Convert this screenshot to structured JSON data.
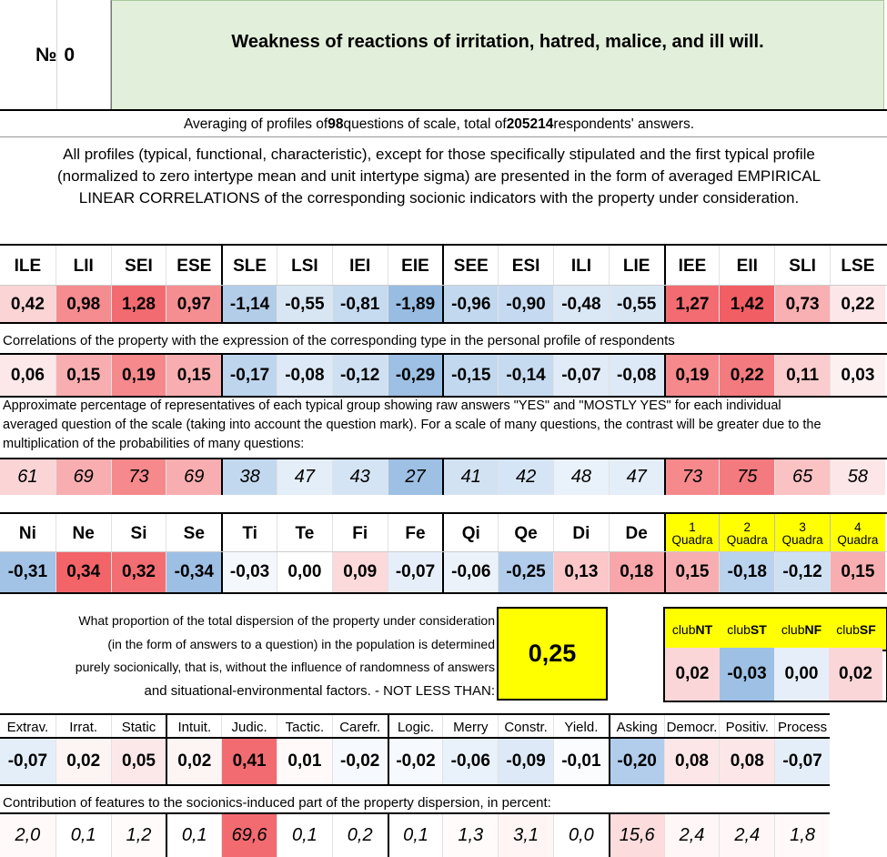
{
  "header": {
    "number_label": "№",
    "number": "0",
    "title": "Weakness of reactions of irritation, hatred, malice, and ill will."
  },
  "summary": {
    "pre": "Averaging of profiles of ",
    "questions": "98",
    "mid": " questions of scale, total of ",
    "answers": "205214",
    "post": " respondents' answers."
  },
  "intro": {
    "line1": "All profiles (typical, functional, characteristic), except for those specifically stipulated and the first typical profile",
    "line2": "(normalized to zero intertype mean and unit intertype sigma) are presented in the form of averaged EMPIRICAL",
    "line3": "LINEAR CORRELATIONS of the corresponding socionic indicators with the property under consideration."
  },
  "types": {
    "headers": [
      "ILE",
      "LII",
      "SEI",
      "ESE",
      "SLE",
      "LSI",
      "IEI",
      "EIE",
      "SEE",
      "ESI",
      "ILI",
      "LIE",
      "IEE",
      "EII",
      "SLI",
      "LSE"
    ],
    "profile": [
      "0,42",
      "0,98",
      "1,28",
      "0,97",
      "-1,14",
      "-0,55",
      "-0,81",
      "-1,89",
      "-0,96",
      "-0,90",
      "-0,48",
      "-0,55",
      "1,27",
      "1,42",
      "0,73",
      "0,22"
    ],
    "profile_colors": [
      "#fbd4d6",
      "#f58c8f",
      "#f26b70",
      "#f58e91",
      "#b3cde9",
      "#d8e6f4",
      "#c6daf0",
      "#98bce2",
      "#c2d8ef",
      "#c5d9f0",
      "#dae7f5",
      "#d8e6f4",
      "#f26c71",
      "#f15f64",
      "#f8b0b2",
      "#fde6e7"
    ],
    "corr_label": "Correlations of the property with the expression of the corresponding type in the personal profile of respondents",
    "correlations": [
      "0,06",
      "0,15",
      "0,19",
      "0,15",
      "-0,17",
      "-0,08",
      "-0,12",
      "-0,29",
      "-0,15",
      "-0,14",
      "-0,07",
      "-0,08",
      "0,19",
      "0,22",
      "0,11",
      "0,03"
    ],
    "corr_colors": [
      "#fde8e9",
      "#f8aeb0",
      "#f5898c",
      "#f8aeb0",
      "#bed5ee",
      "#dde9f6",
      "#cfe0f3",
      "#9dc0e4",
      "#c2d8ef",
      "#c6daf0",
      "#e0ebf7",
      "#dde9f6",
      "#f5898c",
      "#f37a7e",
      "#fbcccd",
      "#fdf0f1"
    ],
    "pct_label": [
      "Approximate percentage of representatives of each typical group showing raw answers \"YES\" and \"MOSTLY YES\" for each individual",
      "averaged question of the scale (taking into account the question mark). For a scale of many questions, the contrast will be greater due to the",
      "multiplication of the probabilities of many questions:"
    ],
    "percentages": [
      "61",
      "69",
      "73",
      "69",
      "38",
      "47",
      "43",
      "27",
      "41",
      "42",
      "48",
      "47",
      "73",
      "75",
      "65",
      "58"
    ],
    "pct_colors": [
      "#fbd4d6",
      "#f8aeb0",
      "#f5898c",
      "#f8aeb0",
      "#c2d8ef",
      "#e4eef8",
      "#d5e4f4",
      "#9dc0e4",
      "#d2e2f3",
      "#d6e5f5",
      "#e9f1fa",
      "#e4eef8",
      "#f5898c",
      "#f37a7e",
      "#fbc2c4",
      "#fde6e7"
    ]
  },
  "functions": {
    "headers": [
      "Ni",
      "Ne",
      "Si",
      "Se",
      "Ti",
      "Te",
      "Fi",
      "Fe",
      "Qi",
      "Qe",
      "Di",
      "De"
    ],
    "values": [
      "-0,31",
      "0,34",
      "0,32",
      "-0,34",
      "-0,03",
      "0,00",
      "0,09",
      "-0,07",
      "-0,06",
      "-0,25",
      "0,13",
      "0,18"
    ],
    "colors": [
      "#a3c3e6",
      "#f26468",
      "#f26e72",
      "#9ebfe4",
      "#f4f8fc",
      "#ffffff",
      "#fcd9da",
      "#e6eff9",
      "#ebf2fa",
      "#b2cdeb",
      "#fbc7c9",
      "#f8a6a9"
    ],
    "quadra_nums": [
      "1",
      "2",
      "3",
      "4"
    ],
    "quadra_word": "Quadra",
    "quadra_values": [
      "0,15",
      "-0,18",
      "-0,12",
      "0,15"
    ],
    "quadra_colors": [
      "#f8aeb0",
      "#b9d2ed",
      "#cfe0f3",
      "#f8aeb0"
    ]
  },
  "dispersion": {
    "lines": [
      "What proportion of the total dispersion of the property under consideration",
      "(in the form of answers to a question) in the population is determined",
      "purely socionically, that is, without the influence of randomness of answers",
      "and situational-environmental factors. - NOT LESS THAN:"
    ],
    "value": "0,25",
    "club_prefix": "club",
    "clubs": [
      "NT",
      "ST",
      "NF",
      "SF"
    ],
    "club_values": [
      "0,02",
      "-0,03",
      "0,00",
      "0,02"
    ],
    "club_colors": [
      "#fbd6d8",
      "#9dc0e4",
      "#e6eff9",
      "#fbd6d8"
    ]
  },
  "traits": {
    "headers": [
      "Extrav.",
      "Irrat.",
      "Static",
      "Intuit.",
      "Judic.",
      "Tactic.",
      "Carefr.",
      "Logic.",
      "Merry",
      "Constr.",
      "Yield.",
      "Asking",
      "Democr.",
      "Positiv.",
      "Process"
    ],
    "values": [
      "-0,07",
      "0,02",
      "0,05",
      "0,02",
      "0,41",
      "0,01",
      "-0,02",
      "-0,02",
      "-0,06",
      "-0,09",
      "-0,01",
      "-0,20",
      "0,08",
      "0,08",
      "-0,07"
    ],
    "colors": [
      "#e4eef8",
      "#fdf4f4",
      "#fde8e9",
      "#fdf4f4",
      "#f26b70",
      "#fff9f9",
      "#f6f9fd",
      "#f6f9fd",
      "#e9f1fa",
      "#dde9f6",
      "#fafcfe",
      "#b2cdeb",
      "#fde6e7",
      "#fde6e7",
      "#e4eef8"
    ],
    "contrib_label": "Contribution of features to the socionics-induced part of the property dispersion, in percent:",
    "contributions": [
      "2,0",
      "0,1",
      "1,2",
      "0,1",
      "69,6",
      "0,1",
      "0,2",
      "0,1",
      "1,3",
      "3,1",
      "0,0",
      "15,6",
      "2,4",
      "2,4",
      "1,8"
    ],
    "contrib_colors": [
      "#fff9f9",
      "#ffffff",
      "#fffbfb",
      "#ffffff",
      "#f26b70",
      "#ffffff",
      "#ffffff",
      "#ffffff",
      "#fffbfb",
      "#fff5f5",
      "#ffffff",
      "#fcdcdd",
      "#fff7f7",
      "#fff7f7",
      "#fff9f9"
    ]
  },
  "colors": {
    "title_bg": "#e2efda",
    "highlight": "#ffff00"
  }
}
